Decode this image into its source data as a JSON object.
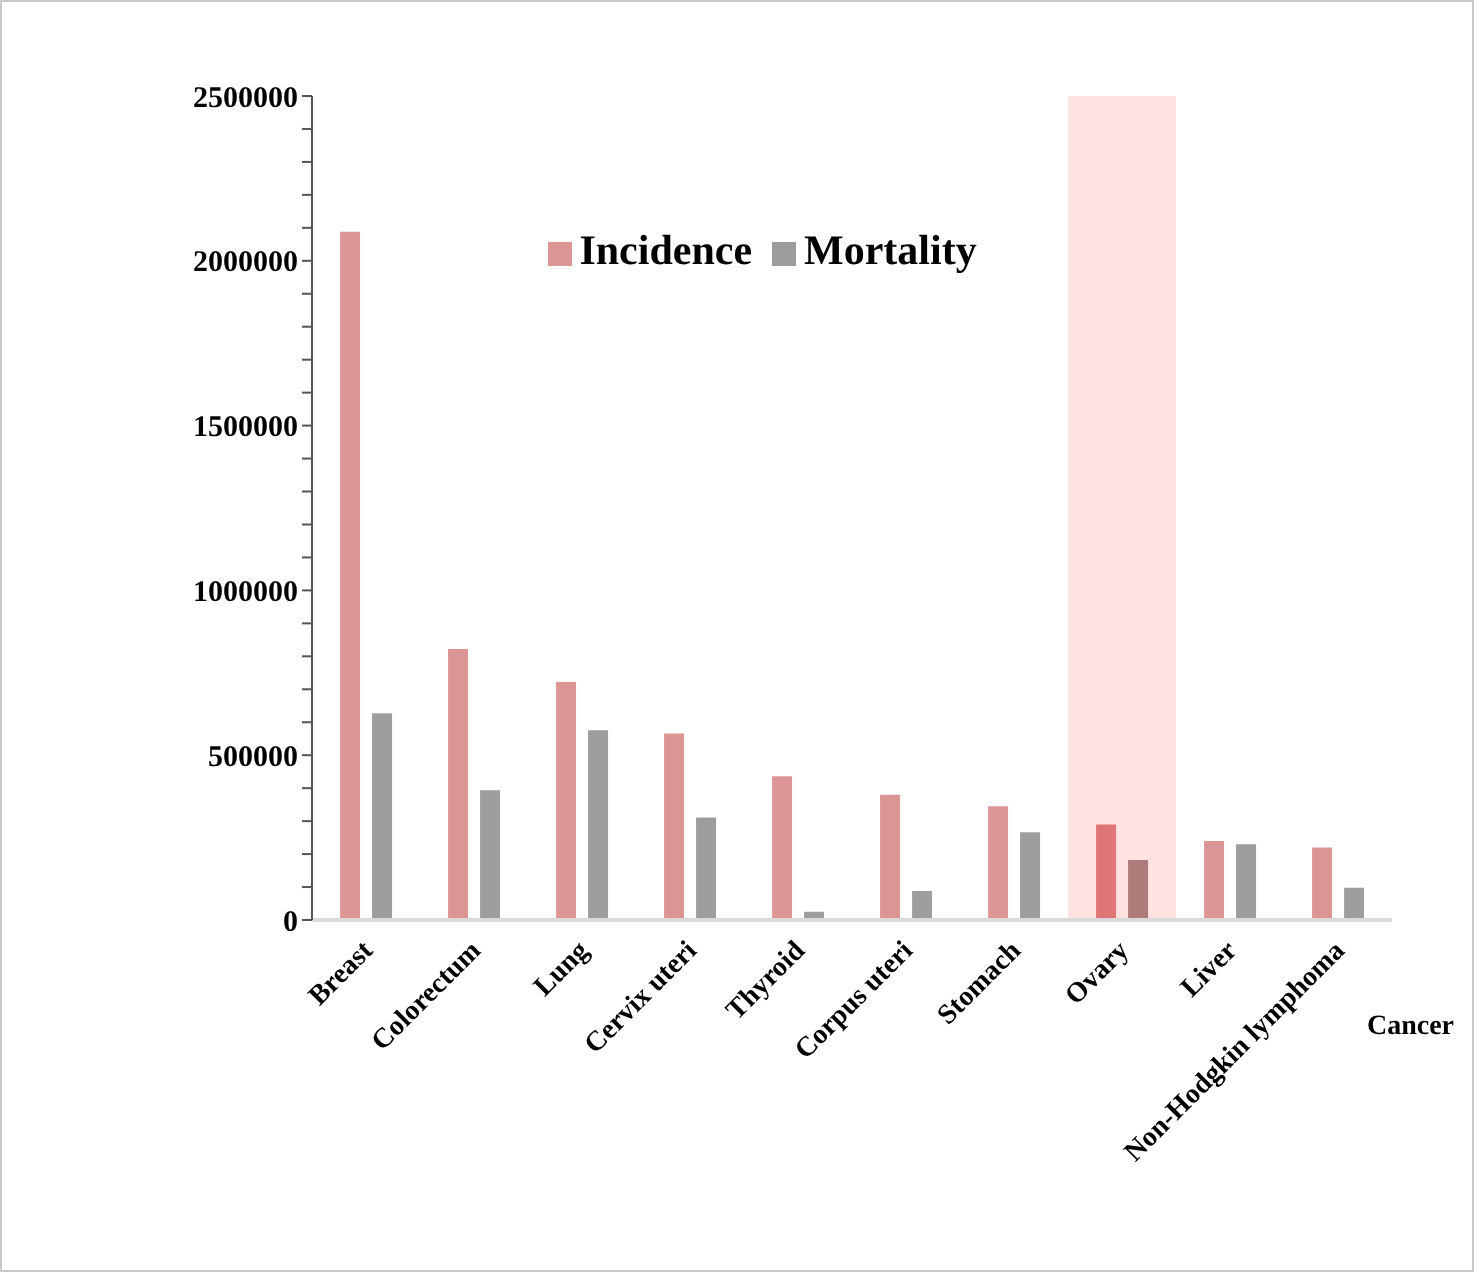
{
  "chart_data": {
    "type": "bar",
    "xlabel": "Cancer",
    "categories": [
      "Breast",
      "Colorectum",
      "Lung",
      "Cervix uteri",
      "Thyroid",
      "Corpus uteri",
      "Stomach",
      "Ovary",
      "Liver",
      "Non-Hodgkin lymphoma"
    ],
    "series": [
      {
        "name": "Incidence",
        "color": "#db9595",
        "colors": [
          "#db9595",
          "#db9595",
          "#db9595",
          "#db9595",
          "#db9595",
          "#db9595",
          "#db9595",
          "#e07575",
          "#db9595",
          "#db9595"
        ],
        "values": [
          2088000,
          822000,
          722000,
          566000,
          436000,
          380000,
          345000,
          290000,
          240000,
          220000
        ]
      },
      {
        "name": "Mortality",
        "color": "#9d9d9e",
        "colors": [
          "#9d9d9e",
          "#9d9d9e",
          "#9d9d9e",
          "#9d9d9e",
          "#9d9d9e",
          "#9d9d9e",
          "#9d9d9e",
          "#ae7b7b",
          "#9d9d9e",
          "#9d9d9e"
        ],
        "values": [
          627000,
          394000,
          576000,
          311000,
          25000,
          88000,
          266000,
          182000,
          230000,
          98000
        ]
      }
    ],
    "bands": [
      {
        "axis": "x",
        "from": "Ovary",
        "to": "Ovary",
        "color": "#ffcccc"
      }
    ],
    "ylim": [
      0,
      2500000
    ],
    "yticks": [
      0,
      {
        "value": 100000,
        "label": null
      },
      {
        "value": 200000,
        "label": null
      },
      {
        "value": 300000,
        "label": null
      },
      {
        "value": 400000,
        "label": null
      },
      500000,
      {
        "value": 600000,
        "label": null
      },
      {
        "value": 700000,
        "label": null
      },
      {
        "value": 800000,
        "label": null
      },
      {
        "value": 900000,
        "label": null
      },
      1000000,
      {
        "value": 1100000,
        "label": null
      },
      {
        "value": 1200000,
        "label": null
      },
      {
        "value": 1300000,
        "label": null
      },
      {
        "value": 1400000,
        "label": null
      },
      1500000,
      {
        "value": 1600000,
        "label": null
      },
      {
        "value": 1700000,
        "label": null
      },
      {
        "value": 1800000,
        "label": null
      },
      {
        "value": 1900000,
        "label": null
      },
      2000000,
      {
        "value": 2100000,
        "label": null
      },
      {
        "value": 2200000,
        "label": null
      },
      {
        "value": 2300000,
        "label": null
      },
      {
        "value": 2400000,
        "label": null
      },
      2500000
    ],
    "legend": "top",
    "grid": false
  }
}
